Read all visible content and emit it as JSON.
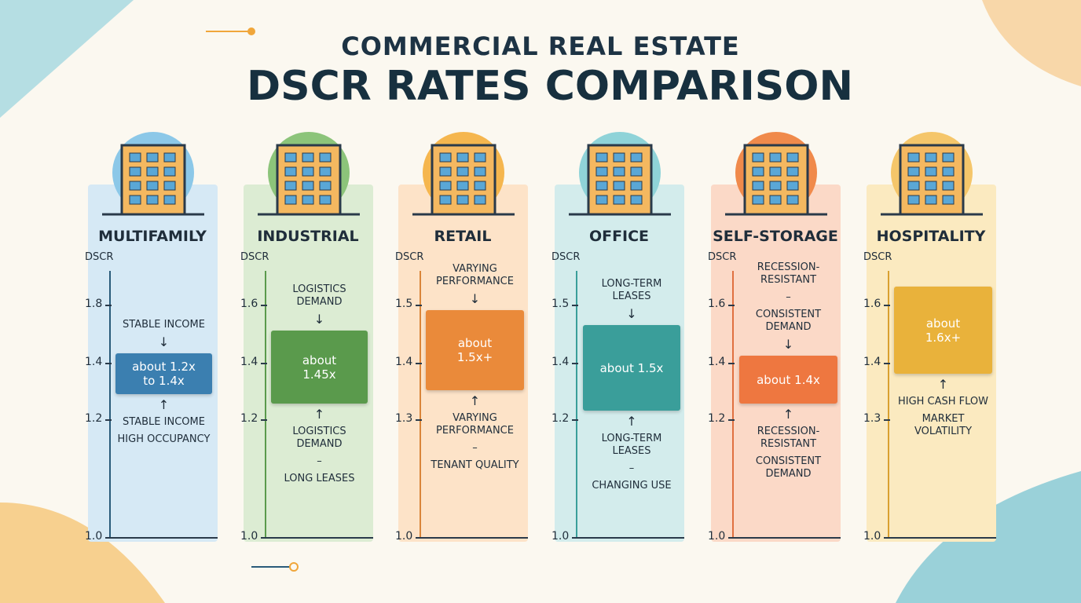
{
  "header": {
    "subtitle": "COMMERCIAL REAL ESTATE",
    "title": "DSCR RATES COMPARISON"
  },
  "columns": [
    {
      "name": "MULTIFAMILY",
      "axis_label": "DSCR",
      "ticks": [
        "1.8",
        "1.4",
        "1.2",
        "1.0"
      ],
      "box": "about 1.2x to 1.4x",
      "notes_above": [
        "STABLE INCOME"
      ],
      "notes_below": [
        "STABLE INCOME",
        "HIGH OCCUPANCY"
      ]
    },
    {
      "name": "INDUSTRIAL",
      "axis_label": "DSCR",
      "ticks": [
        "1.6",
        "1.4",
        "1.2",
        "1.0"
      ],
      "box": "about 1.45x",
      "notes_above": [
        "LOGISTICS DEMAND"
      ],
      "notes_below": [
        "LOGISTICS DEMAND",
        "–",
        "LONG LEASES"
      ]
    },
    {
      "name": "RETAIL",
      "axis_label": "DSCR",
      "ticks": [
        "1.5",
        "1.4",
        "1.3",
        "1.0"
      ],
      "box": "about 1.5x+",
      "notes_above": [
        "VARYING PERFORMANCE"
      ],
      "notes_below": [
        "VARYING PERFORMANCE",
        "–",
        "TENANT QUALITY"
      ]
    },
    {
      "name": "OFFICE",
      "axis_label": "DSCR",
      "ticks": [
        "1.5",
        "1.4",
        "1.2",
        "1.0"
      ],
      "box": "about 1.5x",
      "notes_above": [
        "LONG-TERM LEASES"
      ],
      "notes_below": [
        "LONG-TERM LEASES",
        "–",
        "CHANGING USE"
      ]
    },
    {
      "name": "SELF-STORAGE",
      "axis_label": "DSCR",
      "ticks": [
        "1.6",
        "1.4",
        "1.2",
        "1.0"
      ],
      "box": "about 1.4x",
      "notes_above": [
        "RECESSION-RESISTANT",
        "–",
        "CONSISTENT DEMAND"
      ],
      "notes_below": [
        "RECESSION-RESISTANT",
        "CONSISTENT DEMAND"
      ]
    },
    {
      "name": "HOSPITALITY",
      "axis_label": "DSCR",
      "ticks": [
        "1.6",
        "1.4",
        "1.3",
        "1.0"
      ],
      "box": "about 1.6x+",
      "notes_above": [],
      "notes_below": [
        "HIGH CASH FLOW",
        "MARKET VOLATILITY"
      ]
    }
  ]
}
